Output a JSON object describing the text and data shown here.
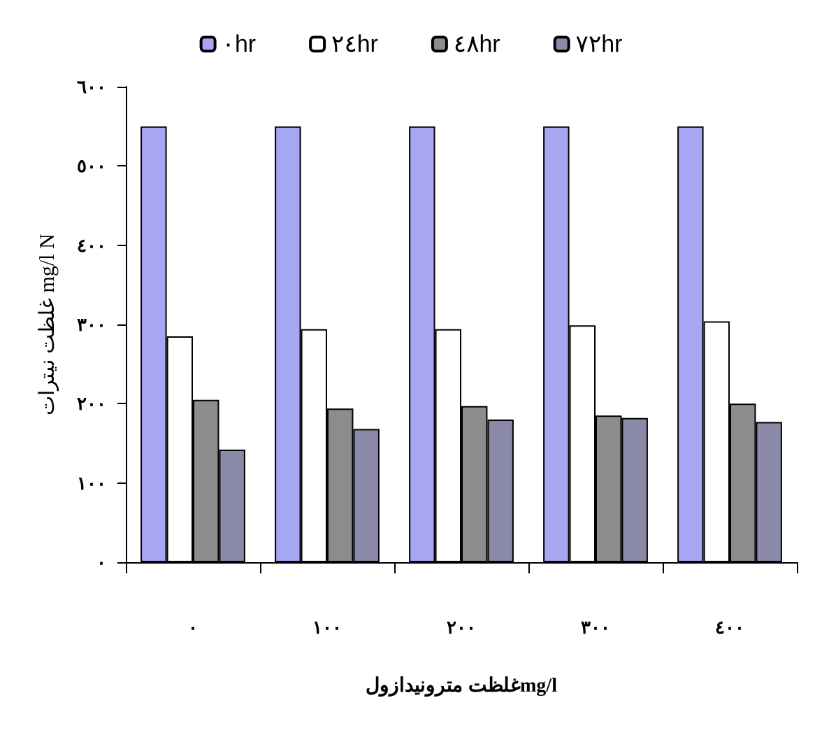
{
  "chart_data": {
    "type": "bar",
    "xlabel": "غلظت مترونیدازولmg/l",
    "ylabel": "غلظت نیترات mg/l N",
    "categories": [
      "٠",
      "١٠٠",
      "٢٠٠",
      "٣٠٠",
      "٤٠٠"
    ],
    "series": [
      {
        "name": "٠hr",
        "color": "#a6a6f2",
        "values": [
          550,
          550,
          550,
          550,
          550
        ]
      },
      {
        "name": "٢٤hr",
        "color": "#ffffff",
        "values": [
          285,
          294,
          294,
          299,
          304
        ]
      },
      {
        "name": "٤٨hr",
        "color": "#8c8c8c",
        "values": [
          205,
          194,
          197,
          185,
          200
        ]
      },
      {
        "name": "٧٢hr",
        "color": "#8a8aa8",
        "values": [
          142,
          168,
          180,
          182,
          177
        ]
      }
    ],
    "ylim": [
      0,
      600
    ],
    "yticks": [
      {
        "value": 0,
        "label": "٠"
      },
      {
        "value": 100,
        "label": "١٠٠"
      },
      {
        "value": 200,
        "label": "٢٠٠"
      },
      {
        "value": 300,
        "label": "٣٠٠"
      },
      {
        "value": 400,
        "label": "٤٠٠"
      },
      {
        "value": 500,
        "label": "٥٠٠"
      },
      {
        "value": 600,
        "label": "٦٠٠"
      }
    ],
    "grid": false,
    "legend": "top"
  }
}
